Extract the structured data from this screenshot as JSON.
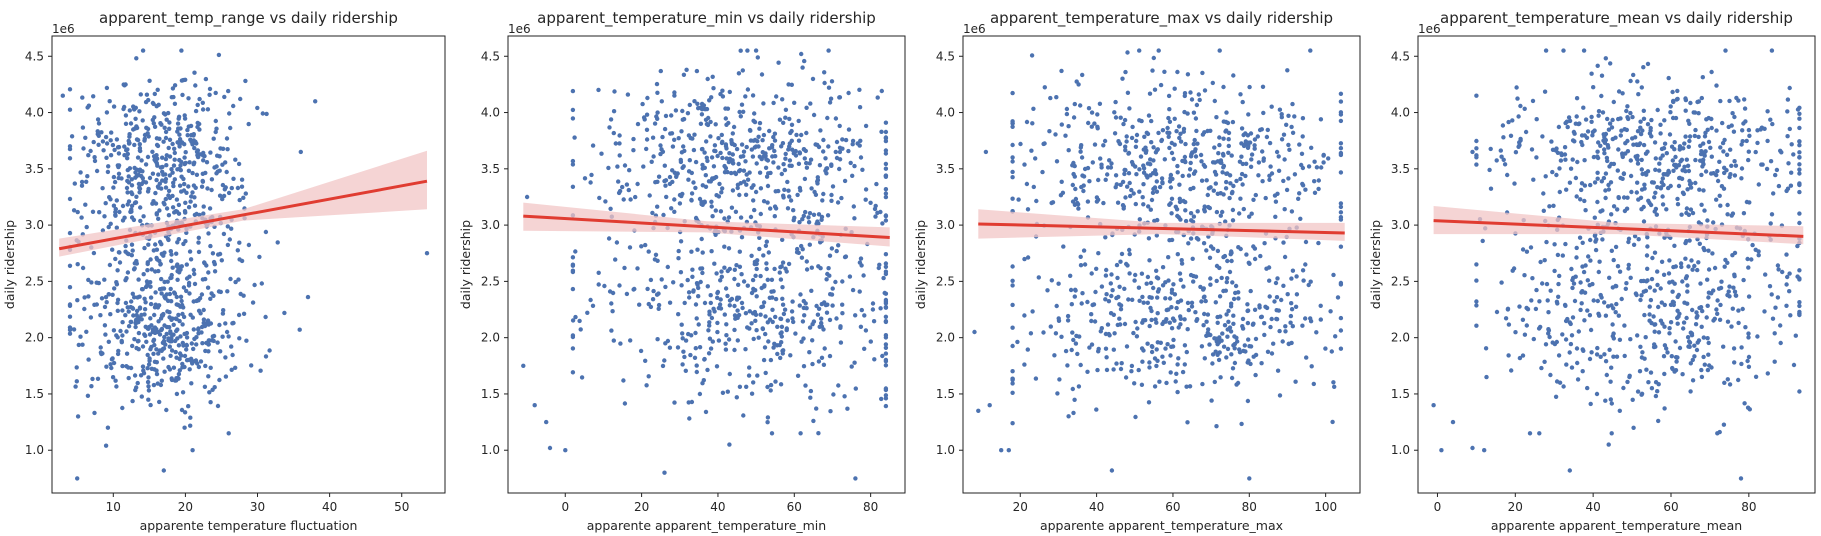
{
  "colors": {
    "points": "#4c72b0",
    "fit_line": "#e03c31",
    "ci_band": "#f2c6c6"
  },
  "chart_data": [
    {
      "type": "scatter",
      "title": "apparent_temp_range vs daily ridership",
      "xlabel": "apparente temperature fluctuation",
      "ylabel": "daily ridership",
      "y_offset_label": "1e6",
      "xlim": [
        1.5,
        56
      ],
      "ylim": [
        0.62,
        4.68
      ],
      "xticks": [
        10,
        20,
        30,
        40,
        50
      ],
      "yticks": [
        1.0,
        1.5,
        2.0,
        2.5,
        3.0,
        3.5,
        4.0,
        4.5
      ],
      "grid": false,
      "fit": {
        "x": [
          2.5,
          53.5
        ],
        "y": [
          2.79,
          3.39
        ],
        "ci_low": [
          2.72,
          3.14
        ],
        "ci_high": [
          2.88,
          3.66
        ]
      },
      "outliers": [
        [
          3,
          4.15
        ],
        [
          5,
          0.75
        ],
        [
          9,
          1.04
        ],
        [
          17,
          0.82
        ],
        [
          21,
          1.0
        ],
        [
          26,
          1.15
        ],
        [
          37,
          2.36
        ],
        [
          53.5,
          2.75
        ],
        [
          36,
          3.65
        ],
        [
          38,
          4.1
        ]
      ],
      "cluster": {
        "n": 1050,
        "seed": 11,
        "x_center": 16.5,
        "x_sd": 5.8,
        "x_min": 4,
        "x_max": 38,
        "y_modes": [
          [
            3.5,
            0.42,
            0.52
          ],
          [
            2.15,
            0.38,
            0.48
          ]
        ],
        "y_min": 1.2,
        "y_max": 4.55
      }
    },
    {
      "type": "scatter",
      "title": "apparent_temperature_min vs daily ridership",
      "xlabel": "apparente  apparent_temperature_min",
      "ylabel": "daily ridership",
      "y_offset_label": "1e6",
      "xlim": [
        -15,
        89
      ],
      "ylim": [
        0.62,
        4.68
      ],
      "xticks": [
        0,
        20,
        40,
        60,
        80
      ],
      "yticks": [
        1.0,
        1.5,
        2.0,
        2.5,
        3.0,
        3.5,
        4.0,
        4.5
      ],
      "grid": false,
      "fit": {
        "x": [
          -11,
          85
        ],
        "y": [
          3.08,
          2.89
        ],
        "ci_low": [
          2.95,
          2.81
        ],
        "ci_high": [
          3.2,
          2.98
        ]
      },
      "outliers": [
        [
          -11,
          1.75
        ],
        [
          -8,
          1.4
        ],
        [
          -5,
          1.25
        ],
        [
          -4,
          1.02
        ],
        [
          0,
          1.0
        ],
        [
          26,
          0.8
        ],
        [
          76,
          0.75
        ],
        [
          43,
          1.05
        ],
        [
          -10,
          3.25
        ]
      ],
      "cluster": {
        "n": 1050,
        "seed": 23,
        "x_center": 47,
        "x_sd": 21,
        "x_min": 2,
        "x_max": 84,
        "y_modes": [
          [
            3.55,
            0.4,
            0.52
          ],
          [
            2.2,
            0.42,
            0.48
          ]
        ],
        "y_min": 1.15,
        "y_max": 4.55
      }
    },
    {
      "type": "scatter",
      "title": "apparent_temperature_max vs daily ridership",
      "xlabel": "apparente  apparent_temperature_max",
      "ylabel": "daily ridership",
      "y_offset_label": "1e6",
      "xlim": [
        5,
        109
      ],
      "ylim": [
        0.62,
        4.68
      ],
      "xticks": [
        20,
        40,
        60,
        80,
        100
      ],
      "yticks": [
        1.0,
        1.5,
        2.0,
        2.5,
        3.0,
        3.5,
        4.0,
        4.5
      ],
      "grid": false,
      "fit": {
        "x": [
          9,
          105
        ],
        "y": [
          3.01,
          2.93
        ],
        "ci_low": [
          2.88,
          2.86
        ],
        "ci_high": [
          3.14,
          3.02
        ]
      },
      "outliers": [
        [
          9,
          1.35
        ],
        [
          12,
          1.4
        ],
        [
          15,
          1.0
        ],
        [
          17,
          1.0
        ],
        [
          44,
          0.82
        ],
        [
          80,
          0.75
        ],
        [
          11,
          3.65
        ],
        [
          8,
          2.05
        ]
      ],
      "cluster": {
        "n": 1050,
        "seed": 37,
        "x_center": 62,
        "x_sd": 22,
        "x_min": 18,
        "x_max": 104,
        "y_modes": [
          [
            3.55,
            0.4,
            0.52
          ],
          [
            2.2,
            0.42,
            0.48
          ]
        ],
        "y_min": 1.15,
        "y_max": 4.55
      }
    },
    {
      "type": "scatter",
      "title": "apparent_temperature_mean vs daily ridership",
      "xlabel": "apparente  apparent_temperature_mean",
      "ylabel": "daily ridership",
      "y_offset_label": "1e6",
      "xlim": [
        -5,
        97
      ],
      "ylim": [
        0.62,
        4.68
      ],
      "xticks": [
        0,
        20,
        40,
        60,
        80
      ],
      "yticks": [
        1.0,
        1.5,
        2.0,
        2.5,
        3.0,
        3.5,
        4.0,
        4.5
      ],
      "grid": false,
      "fit": {
        "x": [
          -1,
          94
        ],
        "y": [
          3.04,
          2.9
        ],
        "ci_low": [
          2.92,
          2.83
        ],
        "ci_high": [
          3.17,
          2.99
        ]
      },
      "outliers": [
        [
          -1,
          1.4
        ],
        [
          1,
          1.0
        ],
        [
          4,
          1.25
        ],
        [
          9,
          1.02
        ],
        [
          12,
          1.0
        ],
        [
          34,
          0.82
        ],
        [
          78,
          0.75
        ],
        [
          44,
          1.05
        ],
        [
          9,
          3.65
        ]
      ],
      "cluster": {
        "n": 1050,
        "seed": 51,
        "x_center": 54,
        "x_sd": 21,
        "x_min": 10,
        "x_max": 93,
        "y_modes": [
          [
            3.55,
            0.4,
            0.52
          ],
          [
            2.2,
            0.42,
            0.48
          ]
        ],
        "y_min": 1.15,
        "y_max": 4.55
      }
    }
  ]
}
